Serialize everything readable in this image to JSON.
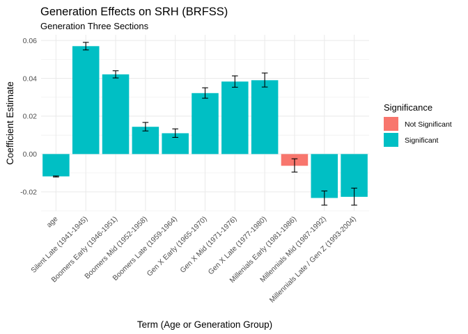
{
  "chart_data": {
    "type": "bar",
    "title": "Generation Effects on SRH (BRFSS)",
    "subtitle": "Generation Three Sections",
    "xlabel": "Term (Age or Generation Group)",
    "ylabel": "Coefficient Estimate",
    "ylim": [
      -0.03,
      0.063
    ],
    "y_ticks": [
      -0.02,
      0.0,
      0.02,
      0.04,
      0.06
    ],
    "y_tick_labels": [
      "-0.02",
      "0.00",
      "0.02",
      "0.04",
      "0.06"
    ],
    "grid": true,
    "legend_position": "right",
    "categories": [
      "age",
      "Silent Late (1941-1945)",
      "Boomers Early (1946-1951)",
      "Boomers Mid (1952-1958)",
      "Boomers Late (1959-1964)",
      "Gen X Early (1965-1970)",
      "Gen X Mid (1971-1976)",
      "Gen X Late (1977-1980)",
      "Millenials Early (1981-1986)",
      "Millennials Mid (1987-1992)",
      "Millennials Late / Gen Z (1993-2004)"
    ],
    "values": [
      -0.0118,
      0.057,
      0.0421,
      0.0144,
      0.011,
      0.0322,
      0.0383,
      0.039,
      -0.0062,
      -0.0232,
      -0.0226
    ],
    "error_low": [
      -0.0121,
      0.055,
      0.0402,
      0.0122,
      0.0088,
      0.0295,
      0.0353,
      0.0354,
      -0.0095,
      -0.027,
      -0.027
    ],
    "error_high": [
      -0.0116,
      0.059,
      0.044,
      0.0167,
      0.0133,
      0.035,
      0.0413,
      0.0428,
      -0.0025,
      -0.0195,
      -0.018
    ],
    "significance": [
      "Significant",
      "Significant",
      "Significant",
      "Significant",
      "Significant",
      "Significant",
      "Significant",
      "Significant",
      "Not Significant",
      "Significant",
      "Significant"
    ],
    "legend": {
      "title": "Significance",
      "entries": [
        {
          "label": "Not Significant",
          "color": "#F8766D"
        },
        {
          "label": "Significant",
          "color": "#00BFC4"
        }
      ]
    }
  }
}
